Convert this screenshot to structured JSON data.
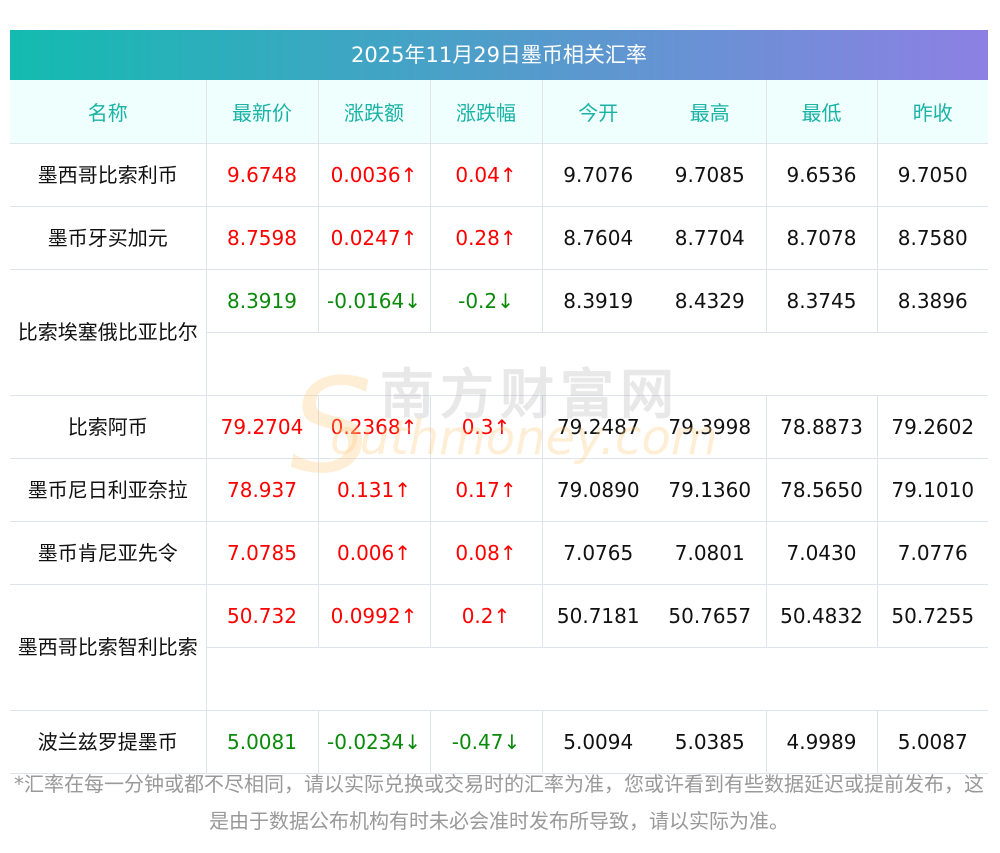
{
  "title": "2025年11月29日墨币相关汇率",
  "headers": [
    "名称",
    "最新价",
    "涨跌额",
    "涨跌幅",
    "今开",
    "最高",
    "最低",
    "昨收"
  ],
  "rows": [
    {
      "name": "墨西哥比索利币",
      "price": "9.6748",
      "change": "0.0036↑",
      "pct": "0.04↑",
      "open": "9.7076",
      "high": "9.7085",
      "low": "9.6536",
      "prev": "9.7050",
      "dir": "up",
      "wrap": false
    },
    {
      "name": "墨币牙买加元",
      "price": "8.7598",
      "change": "0.0247↑",
      "pct": "0.28↑",
      "open": "8.7604",
      "high": "8.7704",
      "low": "8.7078",
      "prev": "8.7580",
      "dir": "up",
      "wrap": false
    },
    {
      "name": "比索埃塞俄比亚比尔",
      "price": "8.3919",
      "change": "-0.0164↓",
      "pct": "-0.2↓",
      "open": "8.3919",
      "high": "8.4329",
      "low": "8.3745",
      "prev": "8.3896",
      "dir": "down",
      "wrap": true
    },
    {
      "name": "比索阿币",
      "price": "79.2704",
      "change": "0.2368↑",
      "pct": "0.3↑",
      "open": "79.2487",
      "high": "79.3998",
      "low": "78.8873",
      "prev": "79.2602",
      "dir": "up",
      "wrap": false
    },
    {
      "name": "墨币尼日利亚奈拉",
      "price": "78.937",
      "change": "0.131↑",
      "pct": "0.17↑",
      "open": "79.0890",
      "high": "79.1360",
      "low": "78.5650",
      "prev": "79.1010",
      "dir": "up",
      "wrap": false
    },
    {
      "name": "墨币肯尼亚先令",
      "price": "7.0785",
      "change": "0.006↑",
      "pct": "0.08↑",
      "open": "7.0765",
      "high": "7.0801",
      "low": "7.0430",
      "prev": "7.0776",
      "dir": "up",
      "wrap": false
    },
    {
      "name": "墨西哥比索智利比索",
      "price": "50.732",
      "change": "0.0992↑",
      "pct": "0.2↑",
      "open": "50.7181",
      "high": "50.7657",
      "low": "50.4832",
      "prev": "50.7255",
      "dir": "up",
      "wrap": true
    },
    {
      "name": "波兰兹罗提墨币",
      "price": "5.0081",
      "change": "-0.0234↓",
      "pct": "-0.47↓",
      "open": "5.0094",
      "high": "5.0385",
      "low": "4.9989",
      "prev": "5.0087",
      "dir": "down",
      "wrap": false
    }
  ],
  "watermark": {
    "cn": "南方财富网",
    "en": "outhmoney.com",
    "s": "S"
  },
  "note": "*汇率在每一分钟或都不尽相同，请以实际兑换或交易时的汇率为准，您或许看到有些数据延迟或提前发布，这是由于数据公布机构有时未必会准时发布所导致，请以实际为准。",
  "colors": {
    "up": "#ff0000",
    "down": "#0a8a0a",
    "header_text": "#1ab3a6"
  }
}
